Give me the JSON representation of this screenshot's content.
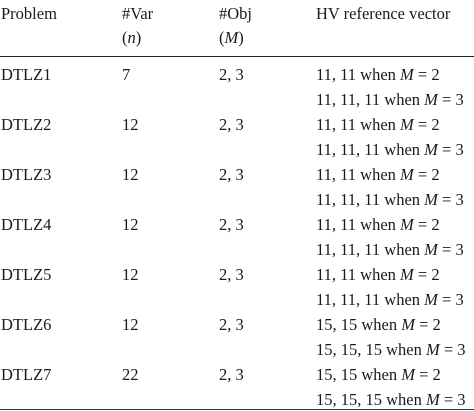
{
  "header": {
    "problem": "Problem",
    "var": "#Var",
    "var_sub": "(n)",
    "obj": "#Obj",
    "obj_sub": "(M)",
    "hv": "HV reference vector"
  },
  "rows": [
    {
      "problem": "DTLZ1",
      "var": "7",
      "obj": "2, 3",
      "hv1": "11, 11 when M = 2",
      "hv2": "11, 11, 11 when M = 3"
    },
    {
      "problem": "DTLZ2",
      "var": "12",
      "obj": "2, 3",
      "hv1": "11, 11 when M = 2",
      "hv2": "11, 11, 11 when M = 3"
    },
    {
      "problem": "DTLZ3",
      "var": "12",
      "obj": "2, 3",
      "hv1": "11, 11 when M = 2",
      "hv2": "11, 11, 11 when M = 3"
    },
    {
      "problem": "DTLZ4",
      "var": "12",
      "obj": "2, 3",
      "hv1": "11, 11 when M = 2",
      "hv2": "11, 11, 11 when M = 3"
    },
    {
      "problem": "DTLZ5",
      "var": "12",
      "obj": "2, 3",
      "hv1": "11, 11 when M = 2",
      "hv2": "11, 11, 11 when M = 3"
    },
    {
      "problem": "DTLZ6",
      "var": "12",
      "obj": "2, 3",
      "hv1": "15, 15 when M = 2",
      "hv2": "15, 15, 15 when M = 3"
    },
    {
      "problem": "DTLZ7",
      "var": "22",
      "obj": "2, 3",
      "hv1": "15, 15 when M = 2",
      "hv2": "15, 15, 15 when M = 3"
    }
  ]
}
